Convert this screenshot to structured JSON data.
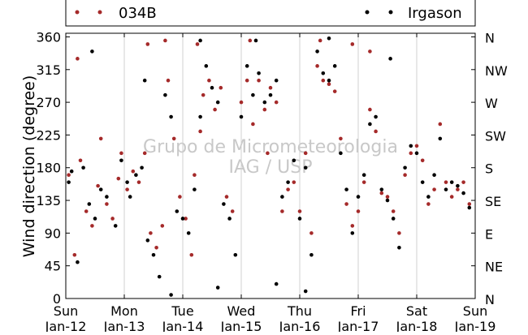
{
  "chart_data": {
    "type": "scatter",
    "ylabel": "Wind direction (degree)",
    "ylim": [
      0,
      365
    ],
    "xlim": [
      0,
      7
    ],
    "yticks": [
      0,
      45,
      90,
      135,
      180,
      225,
      270,
      315,
      360
    ],
    "yticks_right": [
      "N",
      "NE",
      "E",
      "SE",
      "S",
      "SW",
      "W",
      "NW",
      "N"
    ],
    "xticks": [
      {
        "day": "Sun",
        "date": "Jan-12"
      },
      {
        "day": "Mon",
        "date": "Jan-13"
      },
      {
        "day": "Tue",
        "date": "Jan-14"
      },
      {
        "day": "Wed",
        "date": "Jan-15"
      },
      {
        "day": "Thu",
        "date": "Jan-16"
      },
      {
        "day": "Fri",
        "date": "Jan-17"
      },
      {
        "day": "Sat",
        "date": "Jan-18"
      },
      {
        "day": "Sun",
        "date": "Jan-19"
      }
    ],
    "grid": "vertical",
    "legend_placement": "top",
    "watermark": [
      "Grupo de Micrometeorologia",
      "IAG / USP"
    ],
    "series": [
      {
        "name": "034B",
        "color": "#a52a2a",
        "points": [
          [
            0.05,
            170
          ],
          [
            0.15,
            60
          ],
          [
            0.25,
            190
          ],
          [
            0.35,
            120
          ],
          [
            0.45,
            100
          ],
          [
            0.55,
            155
          ],
          [
            0.7,
            130
          ],
          [
            0.8,
            110
          ],
          [
            0.9,
            165
          ],
          [
            0.95,
            200
          ],
          [
            1.05,
            150
          ],
          [
            1.15,
            175
          ],
          [
            1.25,
            160
          ],
          [
            1.35,
            200
          ],
          [
            1.45,
            90
          ],
          [
            1.55,
            70
          ],
          [
            1.65,
            100
          ],
          [
            1.75,
            300
          ],
          [
            1.85,
            220
          ],
          [
            1.95,
            140
          ],
          [
            2.05,
            110
          ],
          [
            2.15,
            60
          ],
          [
            2.2,
            170
          ],
          [
            2.3,
            230
          ],
          [
            2.35,
            280
          ],
          [
            2.45,
            300
          ],
          [
            2.55,
            260
          ],
          [
            2.65,
            290
          ],
          [
            2.75,
            140
          ],
          [
            2.85,
            120
          ],
          [
            3.0,
            270
          ],
          [
            3.1,
            300
          ],
          [
            3.2,
            240
          ],
          [
            3.3,
            300
          ],
          [
            3.4,
            260
          ],
          [
            3.5,
            290
          ],
          [
            3.6,
            270
          ],
          [
            3.7,
            120
          ],
          [
            3.8,
            150
          ],
          [
            3.9,
            160
          ],
          [
            4.0,
            120
          ],
          [
            4.1,
            200
          ],
          [
            4.2,
            90
          ],
          [
            4.3,
            320
          ],
          [
            4.4,
            300
          ],
          [
            4.5,
            295
          ],
          [
            4.6,
            285
          ],
          [
            4.7,
            220
          ],
          [
            4.8,
            130
          ],
          [
            4.9,
            100
          ],
          [
            5.0,
            120
          ],
          [
            5.1,
            160
          ],
          [
            5.2,
            260
          ],
          [
            5.3,
            230
          ],
          [
            5.4,
            145
          ],
          [
            5.5,
            140
          ],
          [
            5.6,
            120
          ],
          [
            5.7,
            90
          ],
          [
            5.8,
            170
          ],
          [
            5.9,
            200
          ],
          [
            6.0,
            210
          ],
          [
            6.1,
            190
          ],
          [
            6.2,
            130
          ],
          [
            6.3,
            150
          ],
          [
            6.4,
            240
          ],
          [
            6.5,
            160
          ],
          [
            6.6,
            140
          ],
          [
            6.7,
            150
          ],
          [
            6.8,
            160
          ],
          [
            6.9,
            130
          ],
          [
            0.2,
            330
          ],
          [
            1.4,
            350
          ],
          [
            2.25,
            350
          ],
          [
            3.15,
            355
          ],
          [
            4.35,
            355
          ],
          [
            4.9,
            350
          ],
          [
            5.2,
            340
          ],
          [
            1.7,
            355
          ],
          [
            0.6,
            220
          ],
          [
            3.45,
            200
          ]
        ]
      },
      {
        "name": "Irgason",
        "color": "#000000",
        "points": [
          [
            0.05,
            160
          ],
          [
            0.1,
            175
          ],
          [
            0.2,
            50
          ],
          [
            0.3,
            180
          ],
          [
            0.4,
            130
          ],
          [
            0.5,
            110
          ],
          [
            0.6,
            150
          ],
          [
            0.7,
            140
          ],
          [
            0.85,
            100
          ],
          [
            0.95,
            190
          ],
          [
            1.05,
            160
          ],
          [
            1.1,
            140
          ],
          [
            1.2,
            170
          ],
          [
            1.3,
            180
          ],
          [
            1.4,
            80
          ],
          [
            1.5,
            60
          ],
          [
            1.6,
            30
          ],
          [
            1.7,
            280
          ],
          [
            1.8,
            250
          ],
          [
            1.9,
            120
          ],
          [
            2.0,
            110
          ],
          [
            2.1,
            90
          ],
          [
            2.2,
            150
          ],
          [
            2.3,
            250
          ],
          [
            2.4,
            320
          ],
          [
            2.5,
            290
          ],
          [
            2.6,
            270
          ],
          [
            2.7,
            130
          ],
          [
            2.8,
            110
          ],
          [
            2.9,
            60
          ],
          [
            3.0,
            250
          ],
          [
            3.1,
            320
          ],
          [
            3.2,
            280
          ],
          [
            3.3,
            310
          ],
          [
            3.4,
            270
          ],
          [
            3.5,
            280
          ],
          [
            3.6,
            300
          ],
          [
            3.7,
            140
          ],
          [
            3.8,
            160
          ],
          [
            3.9,
            190
          ],
          [
            4.0,
            110
          ],
          [
            4.1,
            180
          ],
          [
            4.2,
            60
          ],
          [
            4.3,
            340
          ],
          [
            4.4,
            310
          ],
          [
            4.5,
            300
          ],
          [
            4.6,
            320
          ],
          [
            4.7,
            200
          ],
          [
            4.8,
            150
          ],
          [
            4.9,
            90
          ],
          [
            5.0,
            140
          ],
          [
            5.1,
            170
          ],
          [
            5.2,
            240
          ],
          [
            5.3,
            250
          ],
          [
            5.4,
            150
          ],
          [
            5.5,
            135
          ],
          [
            5.6,
            110
          ],
          [
            5.7,
            70
          ],
          [
            5.8,
            180
          ],
          [
            5.9,
            210
          ],
          [
            6.0,
            200
          ],
          [
            6.1,
            160
          ],
          [
            6.2,
            140
          ],
          [
            6.3,
            170
          ],
          [
            6.4,
            220
          ],
          [
            6.5,
            150
          ],
          [
            6.6,
            160
          ],
          [
            6.7,
            155
          ],
          [
            6.8,
            145
          ],
          [
            6.9,
            125
          ],
          [
            0.45,
            340
          ],
          [
            1.35,
            300
          ],
          [
            2.3,
            355
          ],
          [
            3.25,
            355
          ],
          [
            4.5,
            358
          ],
          [
            3.6,
            20
          ],
          [
            2.6,
            15
          ],
          [
            4.1,
            10
          ],
          [
            1.8,
            5
          ],
          [
            5.55,
            330
          ]
        ]
      }
    ]
  }
}
